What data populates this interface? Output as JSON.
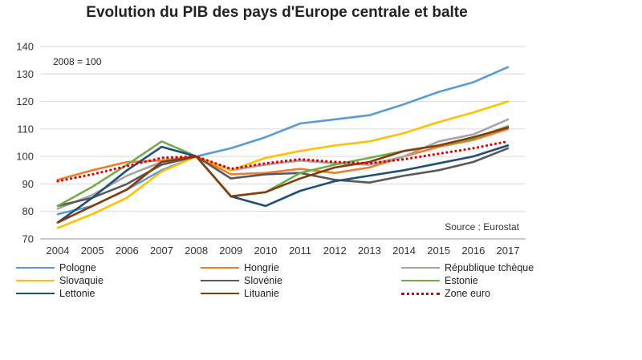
{
  "chart_data": {
    "type": "line",
    "title": "Evolution du PIB des pays d'Europe centrale et balte",
    "annotation_base": "2008 = 100",
    "source": "Source : Eurostat",
    "x": [
      2004,
      2005,
      2006,
      2007,
      2008,
      2009,
      2010,
      2011,
      2012,
      2013,
      2014,
      2015,
      2016,
      2017
    ],
    "xticks": [
      "2004",
      "2005",
      "2006",
      "2007",
      "2008",
      "2009",
      "2010",
      "2011",
      "2012",
      "2013",
      "2014",
      "2015",
      "2016",
      "2017"
    ],
    "ylim": [
      70,
      140
    ],
    "yticks": [
      "70",
      "80",
      "90",
      "100",
      "110",
      "120",
      "130",
      "140"
    ],
    "grid": "horizontal",
    "legend_placement": "bottom",
    "series": [
      {
        "name": "Pologne",
        "color": "#5b9bd5",
        "dash": "solid",
        "values": [
          79,
          82,
          88,
          95,
          100,
          103,
          107,
          112,
          113.5,
          115,
          119,
          123.5,
          127,
          132.5
        ]
      },
      {
        "name": "Hongrie",
        "color": "#ed7d31",
        "dash": "solid",
        "values": [
          91.5,
          95,
          98,
          98.5,
          100,
          93.5,
          94,
          95.5,
          94,
          96,
          100,
          103.5,
          106,
          110
        ]
      },
      {
        "name": "République tchèque",
        "color": "#a5a5a5",
        "dash": "solid",
        "values": [
          81,
          86,
          93,
          98,
          100,
          95,
          97,
          98.5,
          97.5,
          97,
          100,
          105.5,
          108,
          113.5
        ]
      },
      {
        "name": "Slovaquie",
        "color": "#ffc000",
        "dash": "solid",
        "values": [
          74,
          79,
          85,
          94.5,
          100,
          95,
          99.5,
          102,
          104,
          105.5,
          108.5,
          112.5,
          116,
          120
        ]
      },
      {
        "name": "Slovénie",
        "color": "#595959",
        "dash": "solid",
        "values": [
          82,
          85,
          90,
          97,
          100,
          92,
          93.5,
          94,
          91.5,
          90.5,
          93,
          95,
          98,
          103
        ]
      },
      {
        "name": "Estonie",
        "color": "#70ad47",
        "dash": "solid",
        "values": [
          82,
          89,
          97,
          105.5,
          100,
          85.5,
          87,
          94,
          97,
          99.5,
          102,
          104,
          106.5,
          111
        ]
      },
      {
        "name": "Lettonie",
        "color": "#1f4e79",
        "dash": "solid",
        "values": [
          76,
          85,
          95,
          103.5,
          100,
          85.5,
          82,
          87.5,
          91,
          93,
          95,
          97.5,
          100,
          104
        ]
      },
      {
        "name": "Lituanie",
        "color": "#843c0c",
        "dash": "solid",
        "values": [
          76,
          82,
          88,
          98,
          100,
          85.5,
          87,
          92,
          96,
          98,
          102,
          104,
          107,
          110.5
        ]
      },
      {
        "name": "Zone euro",
        "color": "#e00000",
        "dash": "dotted",
        "values": [
          91,
          93.5,
          96.5,
          99.5,
          100,
          95.5,
          97.5,
          99,
          98,
          97.5,
          99,
          101,
          103,
          105.5
        ]
      }
    ]
  }
}
